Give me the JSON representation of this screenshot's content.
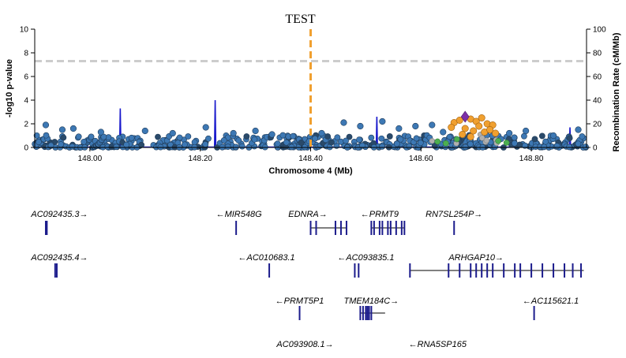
{
  "chart_data": {
    "type": "scatter",
    "title": "TEST",
    "xlabel": "Chromosome 4 (Mb)",
    "ylabel": "-log10 p-value",
    "y2label": "Recombination Rate (cM/Mb)",
    "xlim": [
      147.9,
      148.9
    ],
    "ylim": [
      0,
      10
    ],
    "y2lim": [
      0,
      100
    ],
    "x_ticks": [
      148.0,
      148.2,
      148.4,
      148.6,
      148.8
    ],
    "x_tick_labels": [
      "148.00",
      "148.20",
      "148.40",
      "148.60",
      "148.80"
    ],
    "y_ticks": [
      0,
      2,
      4,
      6,
      8,
      10
    ],
    "y_tick_labels": [
      "0",
      "2",
      "4",
      "6",
      "8",
      "10"
    ],
    "y2_ticks": [
      0,
      20,
      40,
      60,
      80,
      100
    ],
    "y2_tick_labels": [
      "0",
      "20",
      "40",
      "60",
      "80",
      "100"
    ],
    "significance_line": 7.3,
    "index_position": 148.4,
    "recombination_peaks": [
      {
        "x": 148.055,
        "y": 3.3
      },
      {
        "x": 148.227,
        "y": 4.0
      },
      {
        "x": 148.52,
        "y": 2.6
      },
      {
        "x": 148.87,
        "y": 1.7
      }
    ],
    "lead_variant": {
      "x": 148.68,
      "y": 2.6
    },
    "highlight_points": [
      {
        "x": 148.66,
        "y": 2.1
      },
      {
        "x": 148.67,
        "y": 2.3
      },
      {
        "x": 148.69,
        "y": 2.4
      },
      {
        "x": 148.7,
        "y": 2.2
      },
      {
        "x": 148.71,
        "y": 2.5
      },
      {
        "x": 148.72,
        "y": 2.0
      },
      {
        "x": 148.73,
        "y": 1.9
      },
      {
        "x": 148.68,
        "y": 1.6
      },
      {
        "x": 148.695,
        "y": 1.4
      },
      {
        "x": 148.705,
        "y": 1.8
      },
      {
        "x": 148.715,
        "y": 1.3
      },
      {
        "x": 148.725,
        "y": 1.5
      },
      {
        "x": 148.675,
        "y": 1.1
      },
      {
        "x": 148.735,
        "y": 1.2
      },
      {
        "x": 148.69,
        "y": 0.9
      },
      {
        "x": 148.655,
        "y": 1.7
      }
    ],
    "tall_points": [
      {
        "x": 147.92,
        "y": 1.9
      },
      {
        "x": 147.95,
        "y": 1.5
      },
      {
        "x": 147.97,
        "y": 1.6
      },
      {
        "x": 148.02,
        "y": 1.3
      },
      {
        "x": 148.1,
        "y": 1.4
      },
      {
        "x": 148.15,
        "y": 1.2
      },
      {
        "x": 148.21,
        "y": 1.7
      },
      {
        "x": 148.26,
        "y": 1.2
      },
      {
        "x": 148.3,
        "y": 1.4
      },
      {
        "x": 148.33,
        "y": 1.1
      },
      {
        "x": 148.42,
        "y": 1.2
      },
      {
        "x": 148.46,
        "y": 2.1
      },
      {
        "x": 148.49,
        "y": 1.8
      },
      {
        "x": 148.53,
        "y": 2.2
      },
      {
        "x": 148.56,
        "y": 1.6
      },
      {
        "x": 148.59,
        "y": 1.8
      },
      {
        "x": 148.62,
        "y": 1.9
      },
      {
        "x": 148.64,
        "y": 1.3
      },
      {
        "x": 148.76,
        "y": 1.2
      },
      {
        "x": 148.79,
        "y": 1.4
      },
      {
        "x": 148.84,
        "y": 1.0
      },
      {
        "x": 148.885,
        "y": 1.5
      }
    ],
    "genes": [
      {
        "name": "AC092435.3→",
        "label_x": 147.945,
        "row": 0,
        "start": 147.92,
        "end": 147.925,
        "exons": [
          147.92,
          147.922
        ]
      },
      {
        "name": "←MIR548G",
        "label_x": 148.27,
        "row": 0,
        "start": 148.265,
        "end": 148.266,
        "exons": [
          148.265
        ]
      },
      {
        "name": "EDNRA→",
        "label_x": 148.395,
        "row": 0,
        "start": 148.4,
        "end": 148.465,
        "exons": [
          148.4,
          148.41,
          148.445,
          148.455,
          148.465
        ]
      },
      {
        "name": "←PRMT9",
        "label_x": 148.525,
        "row": 0,
        "start": 148.51,
        "end": 148.57,
        "exons": [
          148.51,
          148.515,
          148.525,
          148.53,
          148.54,
          148.545,
          148.555,
          148.565,
          148.57
        ]
      },
      {
        "name": "RN7SL254P→",
        "label_x": 148.66,
        "row": 0,
        "start": 148.66,
        "end": 148.661,
        "exons": [
          148.66
        ]
      },
      {
        "name": "AC092435.4→",
        "label_x": 147.945,
        "row": 1,
        "start": 147.937,
        "end": 147.942,
        "exons": [
          147.937,
          147.94
        ]
      },
      {
        "name": "←AC010683.1",
        "label_x": 148.32,
        "row": 1,
        "start": 148.325,
        "end": 148.326,
        "exons": [
          148.325
        ]
      },
      {
        "name": "←AC093835.1",
        "label_x": 148.5,
        "row": 1,
        "start": 148.48,
        "end": 148.487,
        "exons": [
          148.48,
          148.487
        ]
      },
      {
        "name": "ARHGAP10→",
        "label_x": 148.7,
        "row": 1,
        "start": 148.58,
        "end": 148.895,
        "exons": [
          148.58,
          148.65,
          148.67,
          148.69,
          148.7,
          148.71,
          148.72,
          148.73,
          148.75,
          148.77,
          148.78,
          148.8,
          148.82,
          148.84,
          148.86,
          148.875,
          148.89
        ]
      },
      {
        "name": "←PRMT5P1",
        "label_x": 148.38,
        "row": 2,
        "start": 148.38,
        "end": 148.381,
        "exons": [
          148.38
        ]
      },
      {
        "name": "TMEM184C→",
        "label_x": 148.51,
        "row": 2,
        "start": 148.49,
        "end": 148.535,
        "exons": [
          148.49,
          148.495,
          148.5,
          148.503,
          148.506,
          148.51
        ]
      },
      {
        "name": "←AC115621.1",
        "label_x": 148.835,
        "row": 2,
        "start": 148.805,
        "end": 148.806,
        "exons": [
          148.805
        ]
      },
      {
        "name": "AC093908.1→",
        "label_x": 148.39,
        "row": 3,
        "start": 148.4,
        "end": 148.401,
        "exons": []
      },
      {
        "name": "←RNA5SP165",
        "label_x": 148.63,
        "row": 3,
        "start": 148.63,
        "end": 148.631,
        "exons": []
      }
    ],
    "colors": {
      "dots": "#3d78b4",
      "dots_stroke": "#1f3c5a",
      "dots_dark": "#2a4a6a",
      "highlight": "#f0a030",
      "highlight_green": "#4caf50",
      "lead": "#7b2fa8",
      "recomb": "#1a1acc",
      "index_line": "#f0a030",
      "sig_line": "#cccccc",
      "genes": "#1c1c8c"
    }
  }
}
